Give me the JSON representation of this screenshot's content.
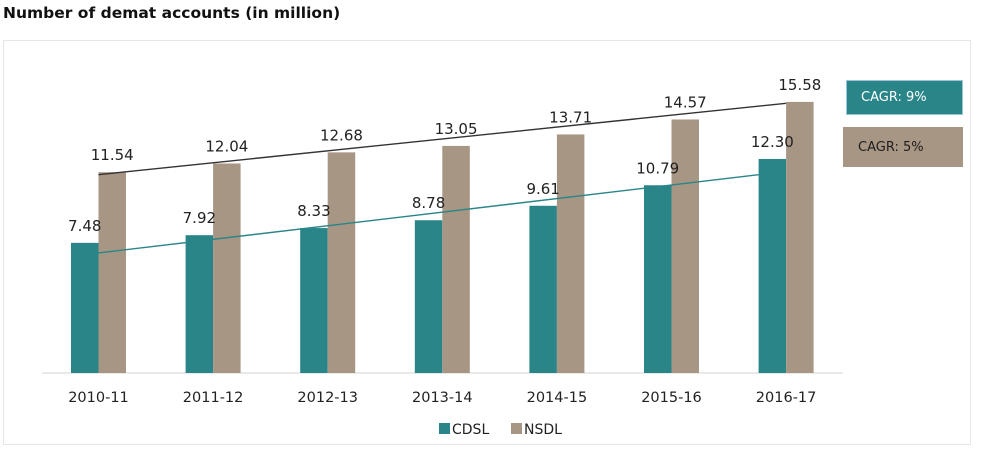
{
  "chart_data": {
    "type": "bar",
    "title": "Number of demat accounts (in million)",
    "xlabel": "",
    "ylabel": "",
    "categories": [
      "2010-11",
      "2011-12",
      "2012-13",
      "2013-14",
      "2014-15",
      "2015-16",
      "2016-17"
    ],
    "series": [
      {
        "name": "CDSL",
        "color": "#2a8589",
        "values": [
          7.48,
          7.92,
          8.33,
          8.78,
          9.61,
          10.79,
          12.3
        ],
        "labels": [
          "7.48",
          "7.92",
          "8.33",
          "8.78",
          "9.61",
          "10.79",
          "12.30"
        ]
      },
      {
        "name": "NSDL",
        "color": "#a89684",
        "values": [
          11.54,
          12.04,
          12.68,
          13.05,
          13.71,
          14.57,
          15.58
        ],
        "labels": [
          "11.54",
          "12.04",
          "12.68",
          "13.05",
          "13.71",
          "14.57",
          "15.58"
        ]
      }
    ],
    "trendlines": [
      {
        "series": "CDSL",
        "color": "#2a8589",
        "from_value": 6.9,
        "to_value": 11.4
      },
      {
        "series": "NSDL",
        "color": "#333333",
        "from_value": 11.4,
        "to_value": 15.5
      }
    ],
    "annotations": [
      {
        "text": "CAGR: 9%",
        "series": "CDSL"
      },
      {
        "text": "CAGR: 5%",
        "series": "NSDL"
      }
    ],
    "ylim": [
      0,
      19
    ],
    "y_axis_visible": false,
    "grid": false,
    "legend": {
      "position": "bottom-center",
      "entries": [
        "CDSL",
        "NSDL"
      ]
    }
  }
}
